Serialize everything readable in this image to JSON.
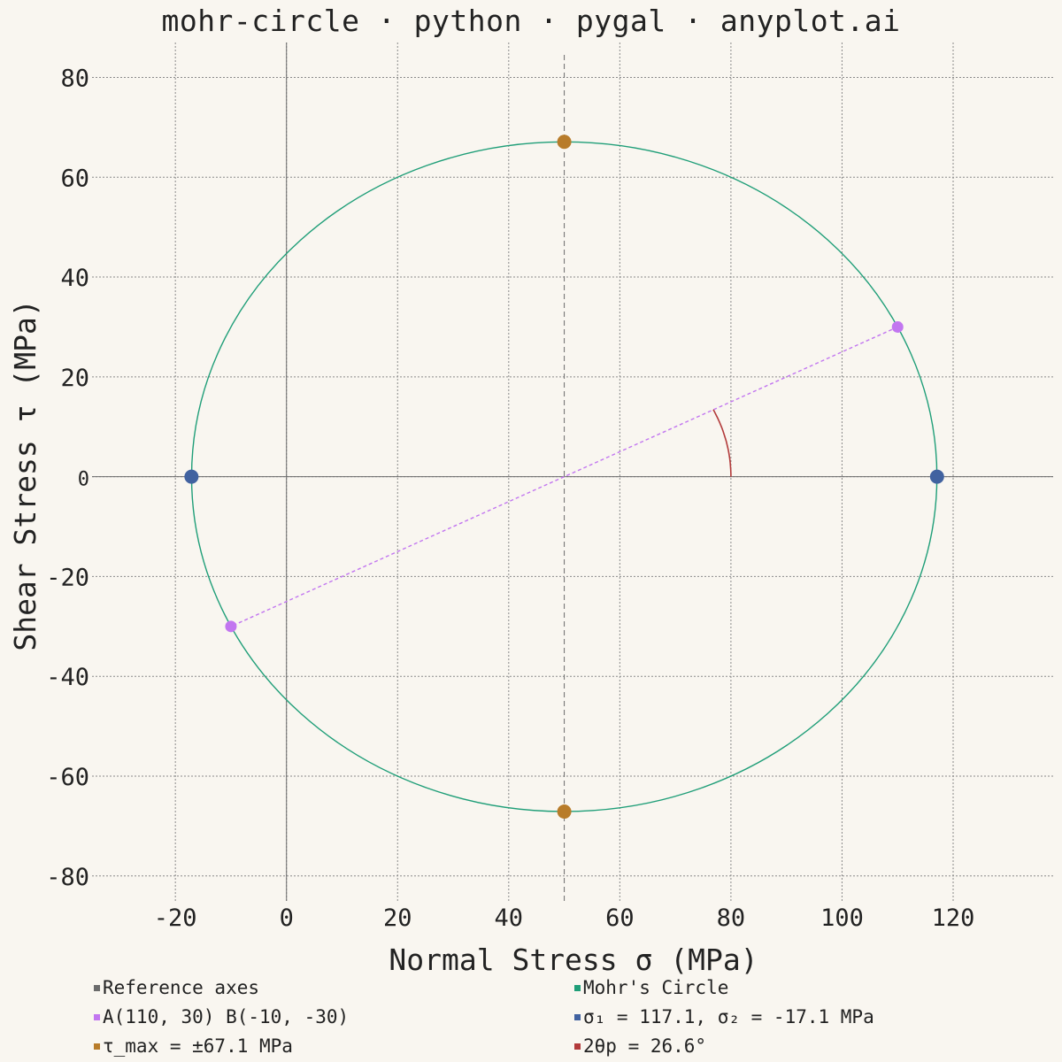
{
  "chart_data": {
    "type": "scatter",
    "title": "mohr-circle · python · pygal · anyplot.ai",
    "xlabel": "Normal Stress σ (MPa)",
    "ylabel": "Shear Stress τ (MPa)",
    "xlim": [
      -35,
      138
    ],
    "ylim": [
      -85,
      87
    ],
    "x_ticks": [
      -20,
      0,
      20,
      40,
      60,
      80,
      100,
      120
    ],
    "y_ticks": [
      80,
      60,
      40,
      20,
      0,
      -20,
      -40,
      -60,
      -80
    ],
    "x_tick_labels": [
      "-20",
      "0",
      "20",
      "40",
      "60",
      "80",
      "100",
      "120"
    ],
    "y_tick_labels": [
      "80",
      "60",
      "40",
      "20",
      "0",
      "-20",
      "-40",
      "-60",
      "-80"
    ],
    "grid": true,
    "legend_placement": "bottom",
    "circle": {
      "center": [
        50,
        0
      ],
      "radius": 67.08
    },
    "series": [
      {
        "name": "Reference axes",
        "color": "#6b6b6b",
        "lines": [
          [
            [
              -35,
              0
            ],
            [
              138,
              0
            ]
          ],
          [
            [
              0,
              -85
            ],
            [
              0,
              87
            ]
          ],
          [
            [
              50,
              -85
            ],
            [
              50,
              85
            ]
          ]
        ]
      },
      {
        "name": "Mohr's Circle",
        "color": "#1f9e78"
      },
      {
        "name": "A(110, 30) B(-10, -30)",
        "color": "#c276f0",
        "points": [
          [
            110,
            30
          ],
          [
            -10,
            -30
          ]
        ]
      },
      {
        "name": "σ₁ = 117.1, σ₂ = -17.1 MPa",
        "color": "#4162a0",
        "points": [
          [
            117.1,
            0
          ],
          [
            -17.1,
            0
          ]
        ]
      },
      {
        "name": "τ_max = ±67.1 MPa",
        "color": "#b87c2a",
        "points": [
          [
            50,
            67.1
          ],
          [
            50,
            -67.1
          ]
        ]
      },
      {
        "name": "2θp = 26.6°",
        "color": "#b23a3a",
        "arc": {
          "center": [
            50,
            0
          ],
          "radius": 30,
          "start_deg": 0,
          "end_deg": 26.6
        }
      }
    ]
  }
}
